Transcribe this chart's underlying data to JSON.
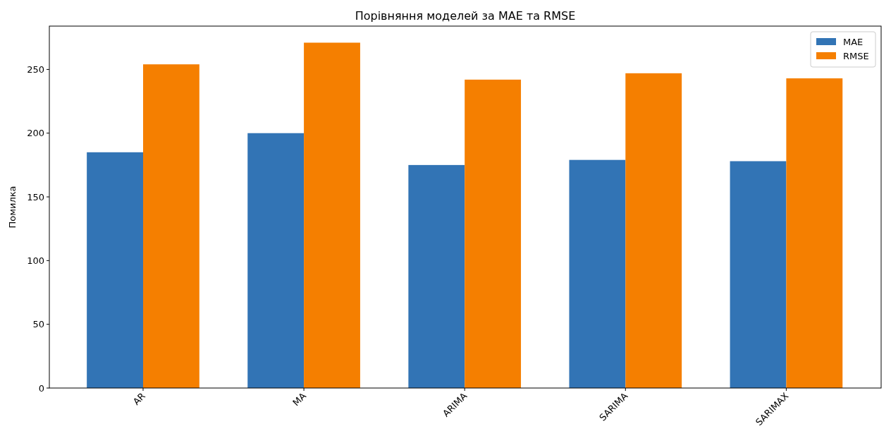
{
  "chart_data": {
    "type": "bar",
    "title": "Порівняння моделей за MAE та RMSE",
    "ylabel": "Помилка",
    "categories": [
      "AR",
      "MA",
      "ARIMA",
      "SARIMA",
      "SARIMAX"
    ],
    "series": [
      {
        "name": "MAE",
        "color": "#3274b5",
        "values": [
          185,
          200,
          175,
          179,
          178
        ]
      },
      {
        "name": "RMSE",
        "color": "#f57f00",
        "values": [
          254,
          271,
          242,
          247,
          243
        ]
      }
    ],
    "ylim": [
      0,
      284
    ],
    "yticks": [
      0,
      50,
      100,
      150,
      200,
      250
    ],
    "legend": "top right",
    "grid": false
  }
}
